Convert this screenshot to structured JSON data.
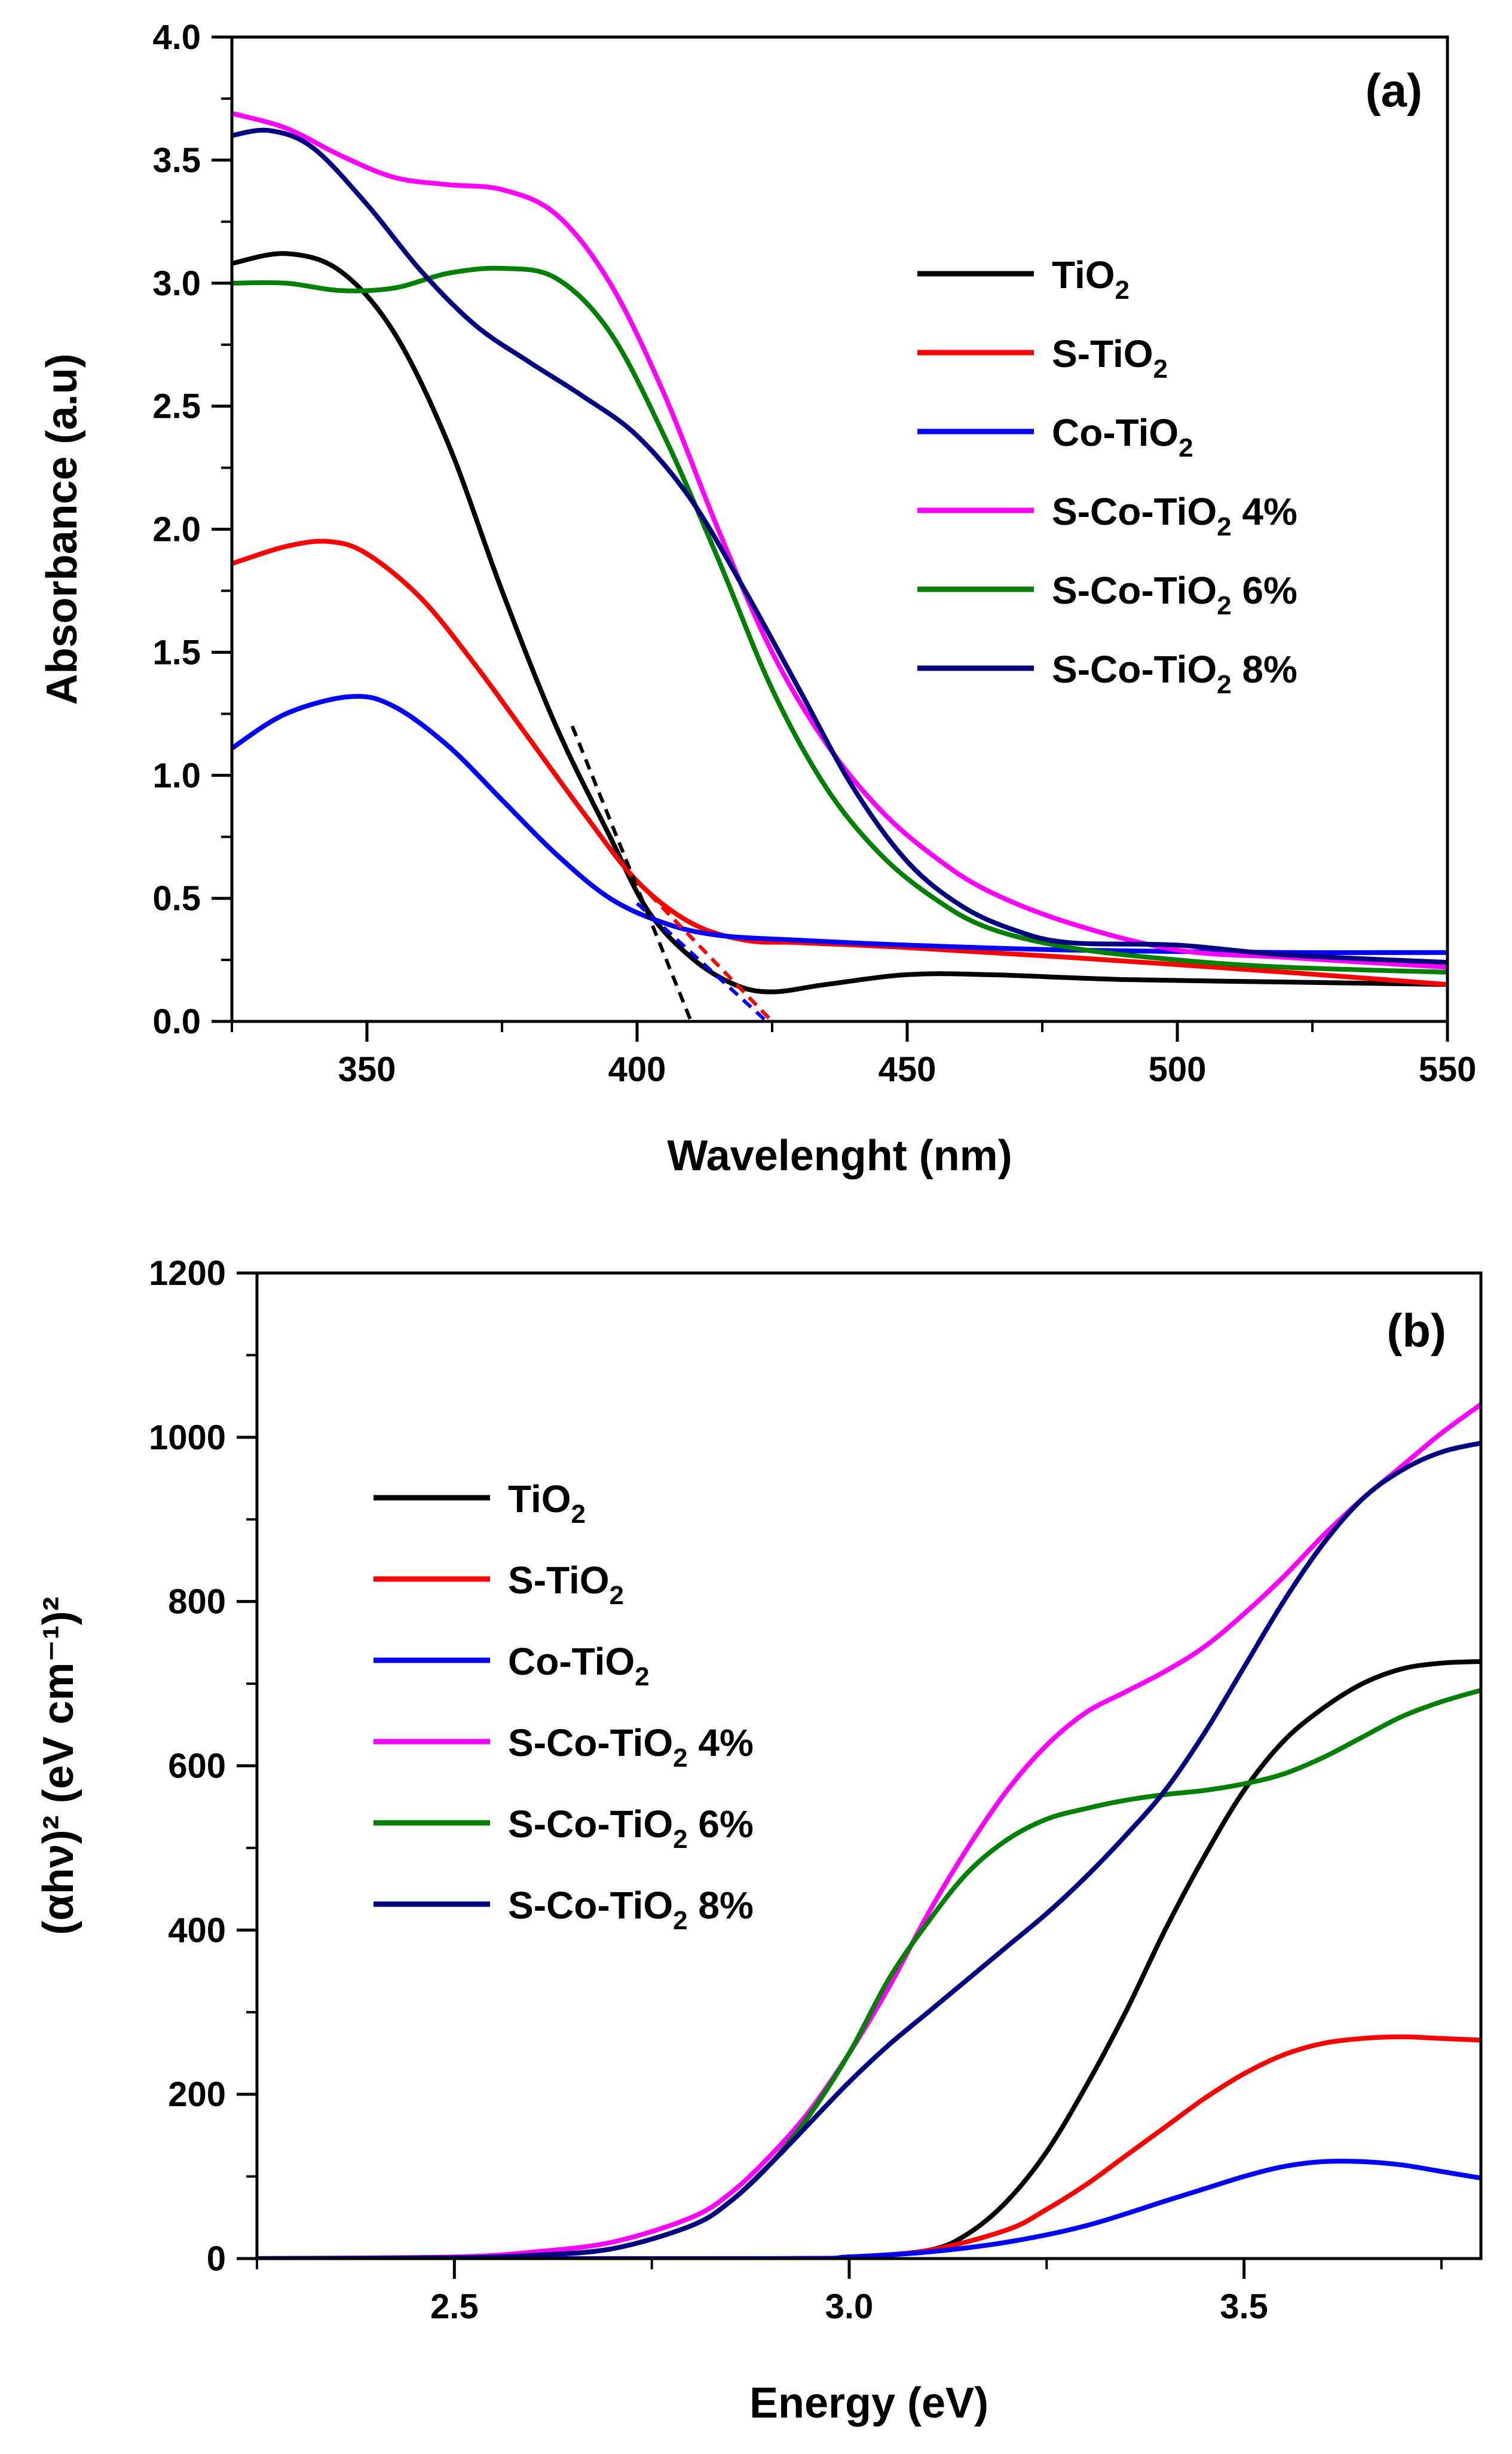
{
  "chart_data": [
    {
      "panel": "(a)",
      "type": "line",
      "title": "",
      "xlabel": "Wavelenght (nm)",
      "ylabel": "Absorbance (a.u)",
      "xlim": [
        325,
        550
      ],
      "ylim": [
        0.0,
        4.0
      ],
      "xticks": [
        350,
        400,
        450,
        500,
        550
      ],
      "yticks": [
        0.0,
        0.5,
        1.0,
        1.5,
        2.0,
        2.5,
        3.0,
        3.5,
        4.0
      ],
      "ytick_decimals": 1,
      "legend_position": "top-right",
      "series": [
        {
          "name": "TiO",
          "sub": "2",
          "suffix": "",
          "color": "#000000",
          "x": [
            325,
            335,
            345,
            355,
            365,
            375,
            385,
            395,
            402,
            410,
            418,
            425,
            435,
            450,
            465,
            490,
            520,
            550
          ],
          "y": [
            3.08,
            3.12,
            3.05,
            2.8,
            2.35,
            1.75,
            1.2,
            0.75,
            0.45,
            0.26,
            0.15,
            0.12,
            0.15,
            0.19,
            0.19,
            0.17,
            0.16,
            0.15
          ]
        },
        {
          "name": "S-TiO",
          "sub": "2",
          "suffix": "",
          "color": "#ff0000",
          "x": [
            325,
            335,
            343,
            350,
            360,
            370,
            380,
            390,
            400,
            410,
            420,
            430,
            450,
            480,
            520,
            550
          ],
          "y": [
            1.86,
            1.93,
            1.95,
            1.9,
            1.72,
            1.45,
            1.15,
            0.85,
            0.57,
            0.4,
            0.33,
            0.32,
            0.3,
            0.26,
            0.2,
            0.15
          ]
        },
        {
          "name": "Co-TiO",
          "sub": "2",
          "suffix": "",
          "color": "#0000ff",
          "x": [
            325,
            335,
            347,
            355,
            365,
            375,
            385,
            395,
            405,
            415,
            430,
            450,
            480,
            520,
            550
          ],
          "y": [
            1.11,
            1.25,
            1.32,
            1.28,
            1.12,
            0.9,
            0.68,
            0.5,
            0.4,
            0.35,
            0.33,
            0.31,
            0.29,
            0.28,
            0.28
          ]
        },
        {
          "name": "S-Co-TiO",
          "sub": "2",
          "suffix": " 4%",
          "color": "#ff00ff",
          "x": [
            325,
            335,
            345,
            355,
            365,
            375,
            385,
            395,
            405,
            415,
            425,
            435,
            445,
            455,
            465,
            480,
            500,
            520,
            550
          ],
          "y": [
            3.69,
            3.63,
            3.52,
            3.43,
            3.4,
            3.38,
            3.28,
            3.0,
            2.55,
            2.0,
            1.5,
            1.13,
            0.86,
            0.67,
            0.53,
            0.4,
            0.29,
            0.26,
            0.22
          ]
        },
        {
          "name": "S-Co-TiO",
          "sub": "2",
          "suffix": " 6%",
          "color": "#008000",
          "x": [
            325,
            335,
            345,
            355,
            365,
            375,
            385,
            395,
            405,
            415,
            425,
            435,
            445,
            455,
            465,
            480,
            500,
            520,
            550
          ],
          "y": [
            3.0,
            3.0,
            2.97,
            2.98,
            3.04,
            3.06,
            3.02,
            2.8,
            2.38,
            1.88,
            1.35,
            0.95,
            0.68,
            0.5,
            0.38,
            0.3,
            0.25,
            0.22,
            0.2
          ]
        },
        {
          "name": "S-Co-TiO",
          "sub": "2",
          "suffix": " 8%",
          "color": "#000080",
          "x": [
            325,
            332,
            340,
            350,
            360,
            370,
            380,
            390,
            400,
            410,
            420,
            430,
            440,
            450,
            460,
            470,
            480,
            500,
            520,
            550
          ],
          "y": [
            3.6,
            3.62,
            3.55,
            3.32,
            3.05,
            2.83,
            2.68,
            2.54,
            2.38,
            2.12,
            1.75,
            1.35,
            0.95,
            0.65,
            0.47,
            0.37,
            0.32,
            0.31,
            0.27,
            0.24
          ]
        }
      ],
      "tangent_lines": [
        {
          "color": "#000000",
          "x": [
            388,
            410
          ],
          "y": [
            1.2,
            0.0
          ]
        },
        {
          "color": "#ff0000",
          "x": [
            400,
            425
          ],
          "y": [
            0.57,
            0.0
          ]
        },
        {
          "color": "#0000ff",
          "x": [
            400,
            424
          ],
          "y": [
            0.48,
            0.0
          ]
        }
      ]
    },
    {
      "panel": "(b)",
      "type": "line",
      "title": "",
      "xlabel": "Energy (eV)",
      "ylabel": "(αhν)² (eV cm⁻¹)²",
      "xlim": [
        2.25,
        3.8
      ],
      "ylim": [
        0,
        1200
      ],
      "xticks": [
        2.5,
        3.0,
        3.5
      ],
      "yticks": [
        0,
        200,
        400,
        600,
        800,
        1000,
        1200
      ],
      "xtick_decimals": 1,
      "legend_position": "top-left",
      "series": [
        {
          "name": "TiO",
          "sub": "2",
          "suffix": "",
          "color": "#000000",
          "x": [
            2.25,
            2.9,
            3.0,
            3.1,
            3.15,
            3.2,
            3.25,
            3.3,
            3.35,
            3.4,
            3.45,
            3.5,
            3.55,
            3.6,
            3.65,
            3.7,
            3.75,
            3.8
          ],
          "y": [
            0,
            0,
            2,
            10,
            30,
            70,
            130,
            210,
            300,
            400,
            490,
            570,
            630,
            670,
            700,
            718,
            725,
            727
          ]
        },
        {
          "name": "S-TiO",
          "sub": "2",
          "suffix": "",
          "color": "#ff0000",
          "x": [
            2.25,
            2.9,
            3.0,
            3.1,
            3.2,
            3.25,
            3.3,
            3.35,
            3.4,
            3.45,
            3.5,
            3.55,
            3.6,
            3.65,
            3.7,
            3.75,
            3.8
          ],
          "y": [
            0,
            0,
            2,
            10,
            35,
            60,
            90,
            125,
            160,
            195,
            225,
            248,
            262,
            268,
            270,
            268,
            266
          ]
        },
        {
          "name": "Co-TiO",
          "sub": "2",
          "suffix": "",
          "color": "#0000ff",
          "x": [
            2.25,
            2.9,
            3.0,
            3.1,
            3.2,
            3.3,
            3.4,
            3.45,
            3.5,
            3.55,
            3.6,
            3.65,
            3.7,
            3.75,
            3.8
          ],
          "y": [
            0,
            0,
            2,
            8,
            20,
            40,
            70,
            85,
            100,
            112,
            118,
            118,
            114,
            106,
            98
          ]
        },
        {
          "name": "S-Co-TiO",
          "sub": "2",
          "suffix": " 4%",
          "color": "#ff00ff",
          "x": [
            2.25,
            2.5,
            2.6,
            2.7,
            2.8,
            2.85,
            2.9,
            2.95,
            3.0,
            3.05,
            3.1,
            3.15,
            3.2,
            3.25,
            3.3,
            3.35,
            3.4,
            3.45,
            3.5,
            3.55,
            3.6,
            3.65,
            3.7,
            3.75,
            3.8
          ],
          "y": [
            0,
            2,
            8,
            20,
            50,
            80,
            125,
            180,
            250,
            330,
            420,
            500,
            570,
            625,
            665,
            690,
            715,
            745,
            785,
            830,
            880,
            925,
            965,
            1005,
            1040
          ]
        },
        {
          "name": "S-Co-TiO",
          "sub": "2",
          "suffix": " 6%",
          "color": "#008000",
          "x": [
            2.25,
            2.5,
            2.6,
            2.7,
            2.8,
            2.85,
            2.9,
            2.95,
            3.0,
            3.05,
            3.1,
            3.15,
            3.2,
            3.25,
            3.3,
            3.35,
            3.4,
            3.45,
            3.5,
            3.55,
            3.6,
            3.65,
            3.7,
            3.75,
            3.8
          ],
          "y": [
            0,
            1,
            4,
            12,
            40,
            70,
            115,
            175,
            250,
            340,
            410,
            470,
            510,
            535,
            548,
            558,
            565,
            570,
            578,
            590,
            610,
            635,
            660,
            678,
            692
          ]
        },
        {
          "name": "S-Co-TiO",
          "sub": "2",
          "suffix": " 8%",
          "color": "#000080",
          "x": [
            2.25,
            2.5,
            2.6,
            2.7,
            2.8,
            2.85,
            2.9,
            2.95,
            3.0,
            3.05,
            3.1,
            3.15,
            3.2,
            3.25,
            3.3,
            3.35,
            3.4,
            3.45,
            3.5,
            3.55,
            3.6,
            3.65,
            3.7,
            3.75,
            3.8
          ],
          "y": [
            0,
            1,
            4,
            12,
            40,
            70,
            115,
            165,
            215,
            260,
            300,
            340,
            380,
            420,
            465,
            515,
            570,
            640,
            720,
            800,
            870,
            925,
            960,
            982,
            993
          ]
        }
      ]
    }
  ]
}
